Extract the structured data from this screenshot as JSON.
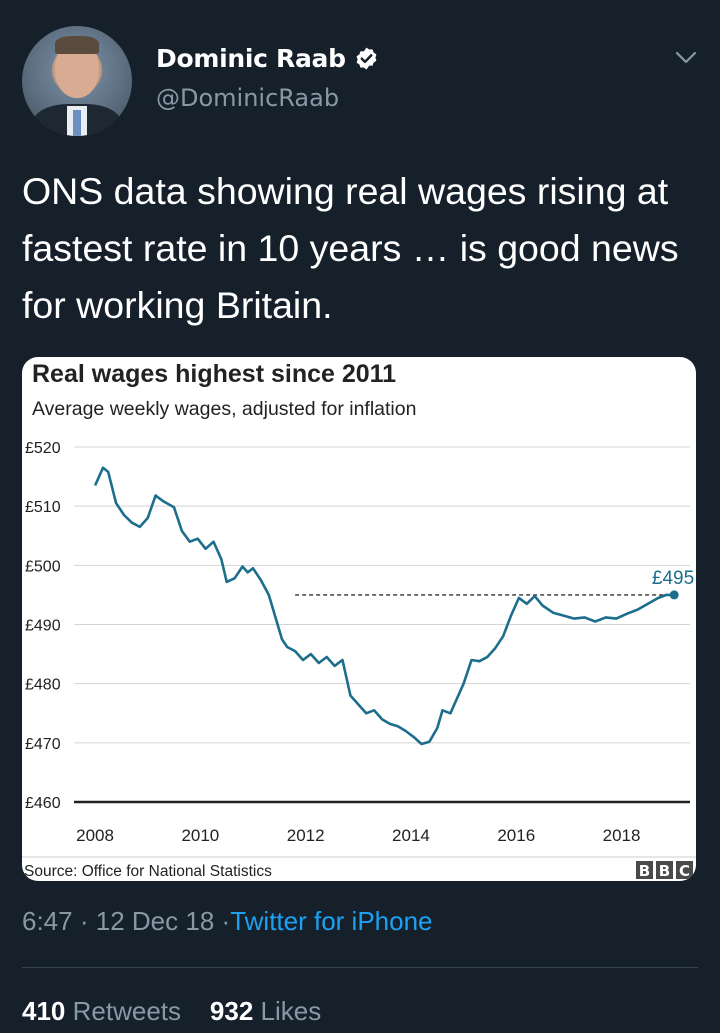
{
  "tweet": {
    "author_name": "Dominic Raab",
    "author_handle": "@DominicRaab",
    "text": "ONS data showing real wages rising at fastest rate in 10 years … is good news for working Britain.",
    "time": "6:47",
    "date": "12 Dec 18",
    "source": "Twitter for iPhone",
    "retweets_count": "410",
    "retweets_label": "Retweets",
    "likes_count": "932",
    "likes_label": "Likes",
    "separator": "·"
  },
  "icons": {
    "verified": "verified-badge-icon",
    "more": "chevron-down-icon",
    "avatar": "avatar"
  },
  "colors": {
    "background": "#15202b",
    "link": "#1da1f2",
    "muted": "#8899a6",
    "line": "#1c6e8c"
  },
  "chart_data": {
    "type": "line",
    "title": "Real wages highest since 2011",
    "subtitle": "Average weekly wages, adjusted for inflation",
    "source_label": "Source: Office for National Statistics",
    "brand": [
      "B",
      "B",
      "C"
    ],
    "xlim": [
      2007.6,
      2019.3
    ],
    "ylim": [
      460,
      520
    ],
    "x_ticks": [
      2008,
      2010,
      2012,
      2014,
      2016,
      2018
    ],
    "x_tick_labels": [
      "2008",
      "2010",
      "2012",
      "2014",
      "2016",
      "2018"
    ],
    "y_ticks": [
      460,
      470,
      480,
      490,
      500,
      510,
      520
    ],
    "y_tick_labels": [
      "£460",
      "£470",
      "£480",
      "£490",
      "£500",
      "£510",
      "£520"
    ],
    "grid": true,
    "reference_line": {
      "y": 495,
      "x_start": 2011.8,
      "x_end": 2019.0
    },
    "end_point": {
      "x": 2019.0,
      "y": 495,
      "label": "£495"
    },
    "series": [
      {
        "x": [
          2008.0,
          2008.15,
          2008.25,
          2008.4,
          2008.55,
          2008.7,
          2008.85,
          2009.0,
          2009.15,
          2009.3,
          2009.5,
          2009.65,
          2009.8,
          2009.95,
          2010.1,
          2010.25,
          2010.4,
          2010.5,
          2010.65,
          2010.8,
          2010.9,
          2011.0,
          2011.15,
          2011.3,
          2011.45,
          2011.55,
          2011.65,
          2011.8,
          2011.95,
          2012.1,
          2012.25,
          2012.4,
          2012.55,
          2012.7,
          2012.85,
          2013.0,
          2013.15,
          2013.3,
          2013.45,
          2013.6,
          2013.75,
          2013.9,
          2014.05,
          2014.2,
          2014.35,
          2014.5,
          2014.6,
          2014.75,
          2014.9,
          2015.0,
          2015.15,
          2015.3,
          2015.45,
          2015.6,
          2015.75,
          2015.9,
          2016.05,
          2016.2,
          2016.35,
          2016.5,
          2016.7,
          2016.9,
          2017.1,
          2017.3,
          2017.5,
          2017.7,
          2017.9,
          2018.1,
          2018.3,
          2018.5,
          2018.7,
          2018.85,
          2019.0
        ],
        "y": [
          513.5,
          516.5,
          515.8,
          510.5,
          508.5,
          507.2,
          506.5,
          508.0,
          511.8,
          510.8,
          509.8,
          505.8,
          504.0,
          504.5,
          502.8,
          504.0,
          501.0,
          497.2,
          497.8,
          499.8,
          498.8,
          499.5,
          497.5,
          495.0,
          490.5,
          487.5,
          486.2,
          485.5,
          484.0,
          485.0,
          483.5,
          484.5,
          483.0,
          484.0,
          478.0,
          476.5,
          475.0,
          475.5,
          474.0,
          473.2,
          472.8,
          472.0,
          471.0,
          469.8,
          470.2,
          472.5,
          475.5,
          475.0,
          478.0,
          480.0,
          484.0,
          483.8,
          484.5,
          486.0,
          488.0,
          491.5,
          494.5,
          493.5,
          494.8,
          493.2,
          492.0,
          491.5,
          491.0,
          491.2,
          490.5,
          491.2,
          491.0,
          491.8,
          492.5,
          493.5,
          494.5,
          495.0,
          495.0
        ]
      }
    ]
  }
}
